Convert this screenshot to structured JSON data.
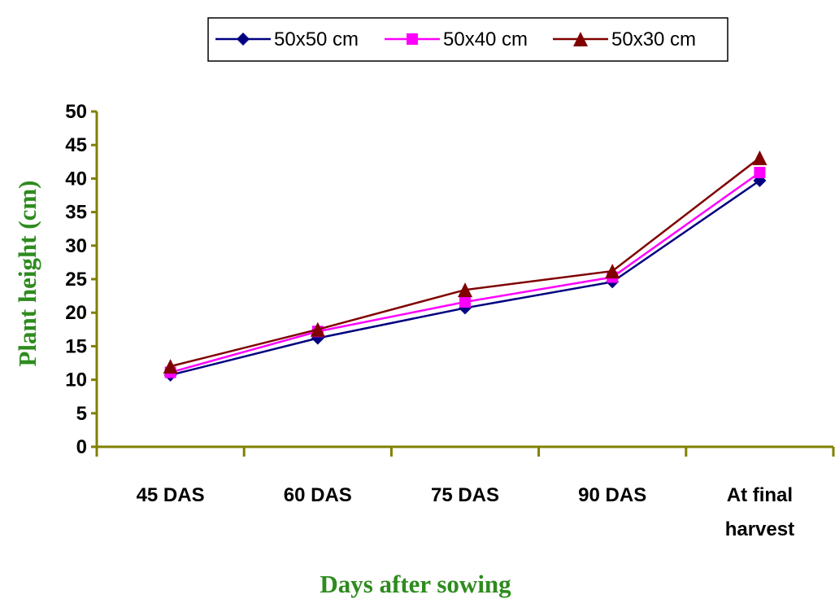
{
  "chart_data": {
    "type": "line",
    "title": "",
    "xlabel": "Days after sowing",
    "ylabel": "Plant height (cm)",
    "ylim": [
      0,
      50
    ],
    "yticks": [
      0,
      5,
      10,
      15,
      20,
      25,
      30,
      35,
      40,
      45,
      50
    ],
    "categories": [
      [
        "45 DAS"
      ],
      [
        "60 DAS"
      ],
      [
        "75 DAS"
      ],
      [
        "90 DAS"
      ],
      [
        "At final",
        "harvest"
      ]
    ],
    "series": [
      {
        "name": "50x50 cm",
        "color": "#000080",
        "marker": "diamond",
        "values": [
          10.7,
          16.2,
          20.7,
          24.6,
          39.7
        ]
      },
      {
        "name": "50x40 cm",
        "color": "#ff00ff",
        "marker": "square",
        "values": [
          11.1,
          17.2,
          21.6,
          25.3,
          40.9
        ]
      },
      {
        "name": "50x30 cm",
        "color": "#800000",
        "marker": "triangle",
        "values": [
          12.0,
          17.5,
          23.4,
          26.2,
          43.1
        ]
      }
    ],
    "legend_position": "top",
    "axis_color": "#808000",
    "grid": false
  }
}
